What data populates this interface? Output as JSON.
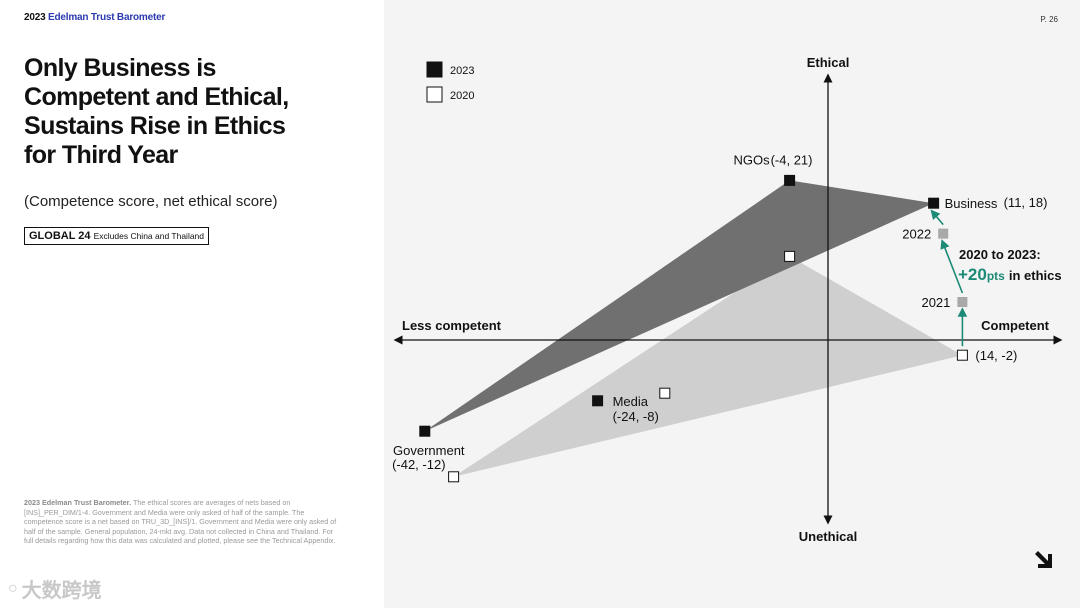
{
  "brand": {
    "year": "2023",
    "name": "Edelman Trust Barometer"
  },
  "page_number": "P. 26",
  "headline": [
    "Only Business is",
    "Competent and Ethical,",
    "Sustains Rise in Ethics",
    "for Third Year"
  ],
  "subtitle": "(Competence score, net ethical score)",
  "region": {
    "global": "GLOBAL 24",
    "note": "Excludes China and Thailand"
  },
  "footnote": {
    "heading": "2023 Edelman Trust Barometer.",
    "body": "The ethical scores are averages of nets based on [INS]_PER_DIM/1-4. Government and Media were only asked of half of the sample. The competence score is a net based on TRU_3D_[INS]/1. Government and Media were only asked of half of the sample. General population, 24-mkt avg. Data not collected in China and Thailand. For full details regarding how this data was calculated and plotted, please see the Technical Appendix."
  },
  "watermark": "大数跨境",
  "chart_data": {
    "type": "scatter",
    "axes": {
      "x_positive_label": "Competent",
      "x_negative_label": "Less competent",
      "y_positive_label": "Ethical",
      "y_negative_label": "Unethical",
      "xlim": [
        -48,
        25
      ],
      "ylim": [
        -19,
        28
      ]
    },
    "legend": {
      "placement": "top-left",
      "entries": [
        {
          "label": "2023",
          "fill": "#111111"
        },
        {
          "label": "2020",
          "fill": "#ffffff"
        }
      ]
    },
    "series": [
      {
        "name": "2023",
        "marker_fill": "#111111",
        "area_fill": "#707070",
        "points": [
          {
            "id": "ngos",
            "x": -4,
            "y": 21,
            "name": "NGOs",
            "coords": "(-4, 21)"
          },
          {
            "id": "business",
            "x": 11,
            "y": 18,
            "name": "Business",
            "coords": "(11, 18)"
          },
          {
            "id": "government",
            "x": -42,
            "y": -12,
            "name": "Government",
            "coords": "(-42, -12)"
          },
          {
            "id": "media",
            "x": -24,
            "y": -8,
            "name": "Media",
            "coords": "(-24, -8)"
          }
        ]
      },
      {
        "name": "2020",
        "marker_fill": "#ffffff",
        "area_fill": "#cfcfcf",
        "points": [
          {
            "id": "ngos",
            "x": -4,
            "y": 11
          },
          {
            "id": "business",
            "x": 14,
            "y": -2,
            "coords": "(14, -2)"
          },
          {
            "id": "government",
            "x": -39,
            "y": -18
          },
          {
            "id": "media",
            "x": -17,
            "y": -7
          }
        ]
      }
    ],
    "business_trend": {
      "color": "#1c8a76",
      "points": [
        {
          "label": "",
          "x": 14,
          "y": -2
        },
        {
          "label": "2021",
          "x": 14,
          "y": 5
        },
        {
          "label": "2022",
          "x": 12,
          "y": 14
        },
        {
          "label": "",
          "x": 11,
          "y": 18
        }
      ],
      "intermediate_fill": "#a8a8a8",
      "annotation_line1": "2020 to 2023:",
      "annotation_value": "+20",
      "annotation_unit": "pts",
      "annotation_suffix": "in ethics"
    }
  }
}
